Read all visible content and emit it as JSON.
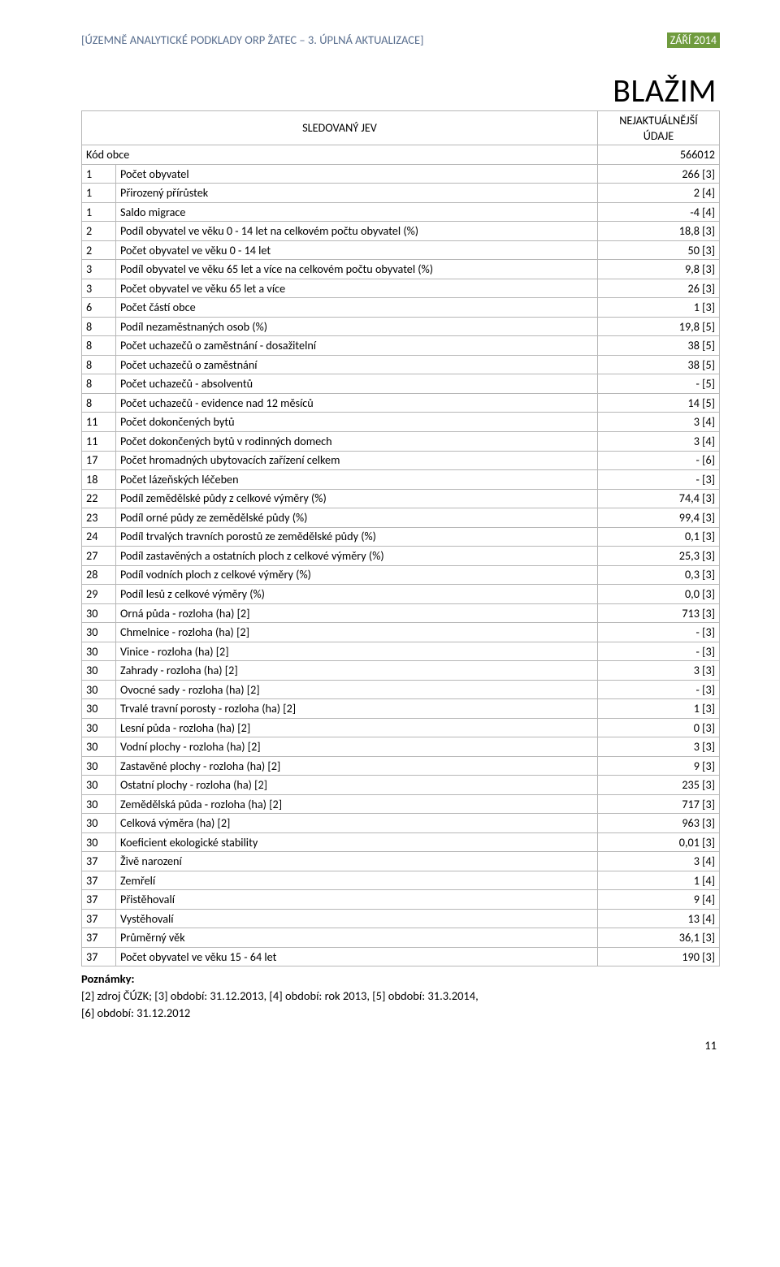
{
  "header": {
    "bracket_open": "[",
    "title": "ÚZEMNĚ ANALYTICKÉ PODKLADY ORP ŽATEC – 3. ÚPLNÁ AKTUALIZACE",
    "bracket_close": "]",
    "date_badge": "ZÁŘÍ 2014"
  },
  "main_title": "BLAŽIM",
  "table": {
    "head_c2": "SLEDOVANÝ JEV",
    "head_c3_line1": "NEJAKTUÁLNĚJŠÍ",
    "head_c3_line2": "ÚDAJE",
    "kod_label": "Kód obce",
    "kod_value": "566012",
    "rows": [
      {
        "i": "1",
        "l": "Počet obyvatel",
        "v": "266 [3]"
      },
      {
        "i": "1",
        "l": "Přirozený přírůstek",
        "v": "2 [4]"
      },
      {
        "i": "1",
        "l": "Saldo migrace",
        "v": "-4 [4]"
      },
      {
        "i": "2",
        "l": "Podíl obyvatel ve věku 0 - 14 let na celkovém počtu obyvatel (%)",
        "v": "18,8 [3]"
      },
      {
        "i": "2",
        "l": "Počet obyvatel ve věku 0 - 14 let",
        "v": "50 [3]"
      },
      {
        "i": "3",
        "l": "Podíl obyvatel ve věku 65 let a více na celkovém počtu obyvatel (%)",
        "v": "9,8 [3]"
      },
      {
        "i": "3",
        "l": "Počet obyvatel ve věku 65 let a více",
        "v": "26 [3]"
      },
      {
        "i": "6",
        "l": "Počet částí obce",
        "v": "1 [3]"
      },
      {
        "i": "8",
        "l": "Podíl nezaměstnaných osob (%)",
        "v": "19,8 [5]"
      },
      {
        "i": "8",
        "l": "Počet uchazečů o zaměstnání - dosažitelní",
        "v": "38 [5]"
      },
      {
        "i": "8",
        "l": "Počet uchazečů o zaměstnání",
        "v": "38 [5]"
      },
      {
        "i": "8",
        "l": "Počet uchazečů - absolventů",
        "v": "- [5]"
      },
      {
        "i": "8",
        "l": "Počet uchazečů - evidence nad 12 měsíců",
        "v": "14 [5]"
      },
      {
        "i": "11",
        "l": "Počet dokončených bytů",
        "v": "3 [4]"
      },
      {
        "i": "11",
        "l": "Počet dokončených bytů v rodinných domech",
        "v": "3 [4]"
      },
      {
        "i": "17",
        "l": "Počet hromadných ubytovacích zařízení celkem",
        "v": "- [6]"
      },
      {
        "i": "18",
        "l": "Počet lázeňských léčeben",
        "v": "- [3]"
      },
      {
        "i": "22",
        "l": "Podíl zemědělské půdy z celkové výměry (%)",
        "v": "74,4 [3]"
      },
      {
        "i": "23",
        "l": "Podíl orné půdy ze zemědělské půdy (%)",
        "v": "99,4 [3]"
      },
      {
        "i": "24",
        "l": "Podíl trvalých travních porostů ze zemědělské půdy (%)",
        "v": "0,1 [3]"
      },
      {
        "i": "27",
        "l": "Podíl zastavěných a ostatních ploch z celkové výměry (%)",
        "v": "25,3 [3]"
      },
      {
        "i": "28",
        "l": "Podíl vodních ploch z celkové výměry (%)",
        "v": "0,3 [3]"
      },
      {
        "i": "29",
        "l": "Podíl lesů z celkové výměry (%)",
        "v": "0,0 [3]"
      },
      {
        "i": "30",
        "l": "Orná půda - rozloha (ha) [2]",
        "v": "713 [3]"
      },
      {
        "i": "30",
        "l": "Chmelnice - rozloha (ha) [2]",
        "v": "- [3]"
      },
      {
        "i": "30",
        "l": "Vinice - rozloha (ha)    [2]",
        "v": "- [3]"
      },
      {
        "i": "30",
        "l": "Zahrady - rozloha (ha)        [2]",
        "v": "3 [3]"
      },
      {
        "i": "30",
        "l": "Ovocné sady - rozloha (ha)  [2]",
        "v": "- [3]"
      },
      {
        "i": "30",
        "l": "Trvalé travní porosty - rozloha (ha) [2]",
        "v": "1 [3]"
      },
      {
        "i": "30",
        "l": "Lesní půda - rozloha (ha) [2]",
        "v": "0 [3]"
      },
      {
        "i": "30",
        "l": "Vodní plochy - rozloha (ha) [2]",
        "v": "3 [3]"
      },
      {
        "i": "30",
        "l": "Zastavěné plochy - rozloha (ha) [2]",
        "v": "9 [3]"
      },
      {
        "i": "30",
        "l": "Ostatní plochy - rozloha (ha) [2]",
        "v": "235 [3]"
      },
      {
        "i": "30",
        "l": "Zemědělská půda - rozloha (ha) [2]",
        "v": "717 [3]"
      },
      {
        "i": "30",
        "l": "Celková výměra (ha) [2]",
        "v": "963 [3]"
      },
      {
        "i": "30",
        "l": "Koeficient ekologické stability",
        "v": "0,01 [3]"
      },
      {
        "i": "37",
        "l": "Živě narození",
        "v": "3 [4]"
      },
      {
        "i": "37",
        "l": "Zemřelí",
        "v": "1 [4]"
      },
      {
        "i": "37",
        "l": "Přistěhovalí",
        "v": "9 [4]"
      },
      {
        "i": "37",
        "l": "Vystěhovalí",
        "v": "13 [4]"
      },
      {
        "i": "37",
        "l": "Průměrný věk",
        "v": "36,1 [3]"
      },
      {
        "i": "37",
        "l": "Počet obyvatel ve věku 15 - 64 let",
        "v": "190 [3]"
      }
    ]
  },
  "notes": {
    "heading": "Poznámky:",
    "line1": "[2] zdroj ČÚZK; [3] období: 31.12.2013, [4] období: rok 2013, [5] období: 31.3.2014,",
    "line2": "[6] období: 31.12.2012"
  },
  "page_number": "11",
  "colors": {
    "header_text": "#5a6f8f",
    "badge_bg": "#6f9b3e",
    "badge_fg": "#ffffff",
    "border": "#b7b7b7",
    "text": "#000000",
    "background": "#ffffff"
  }
}
